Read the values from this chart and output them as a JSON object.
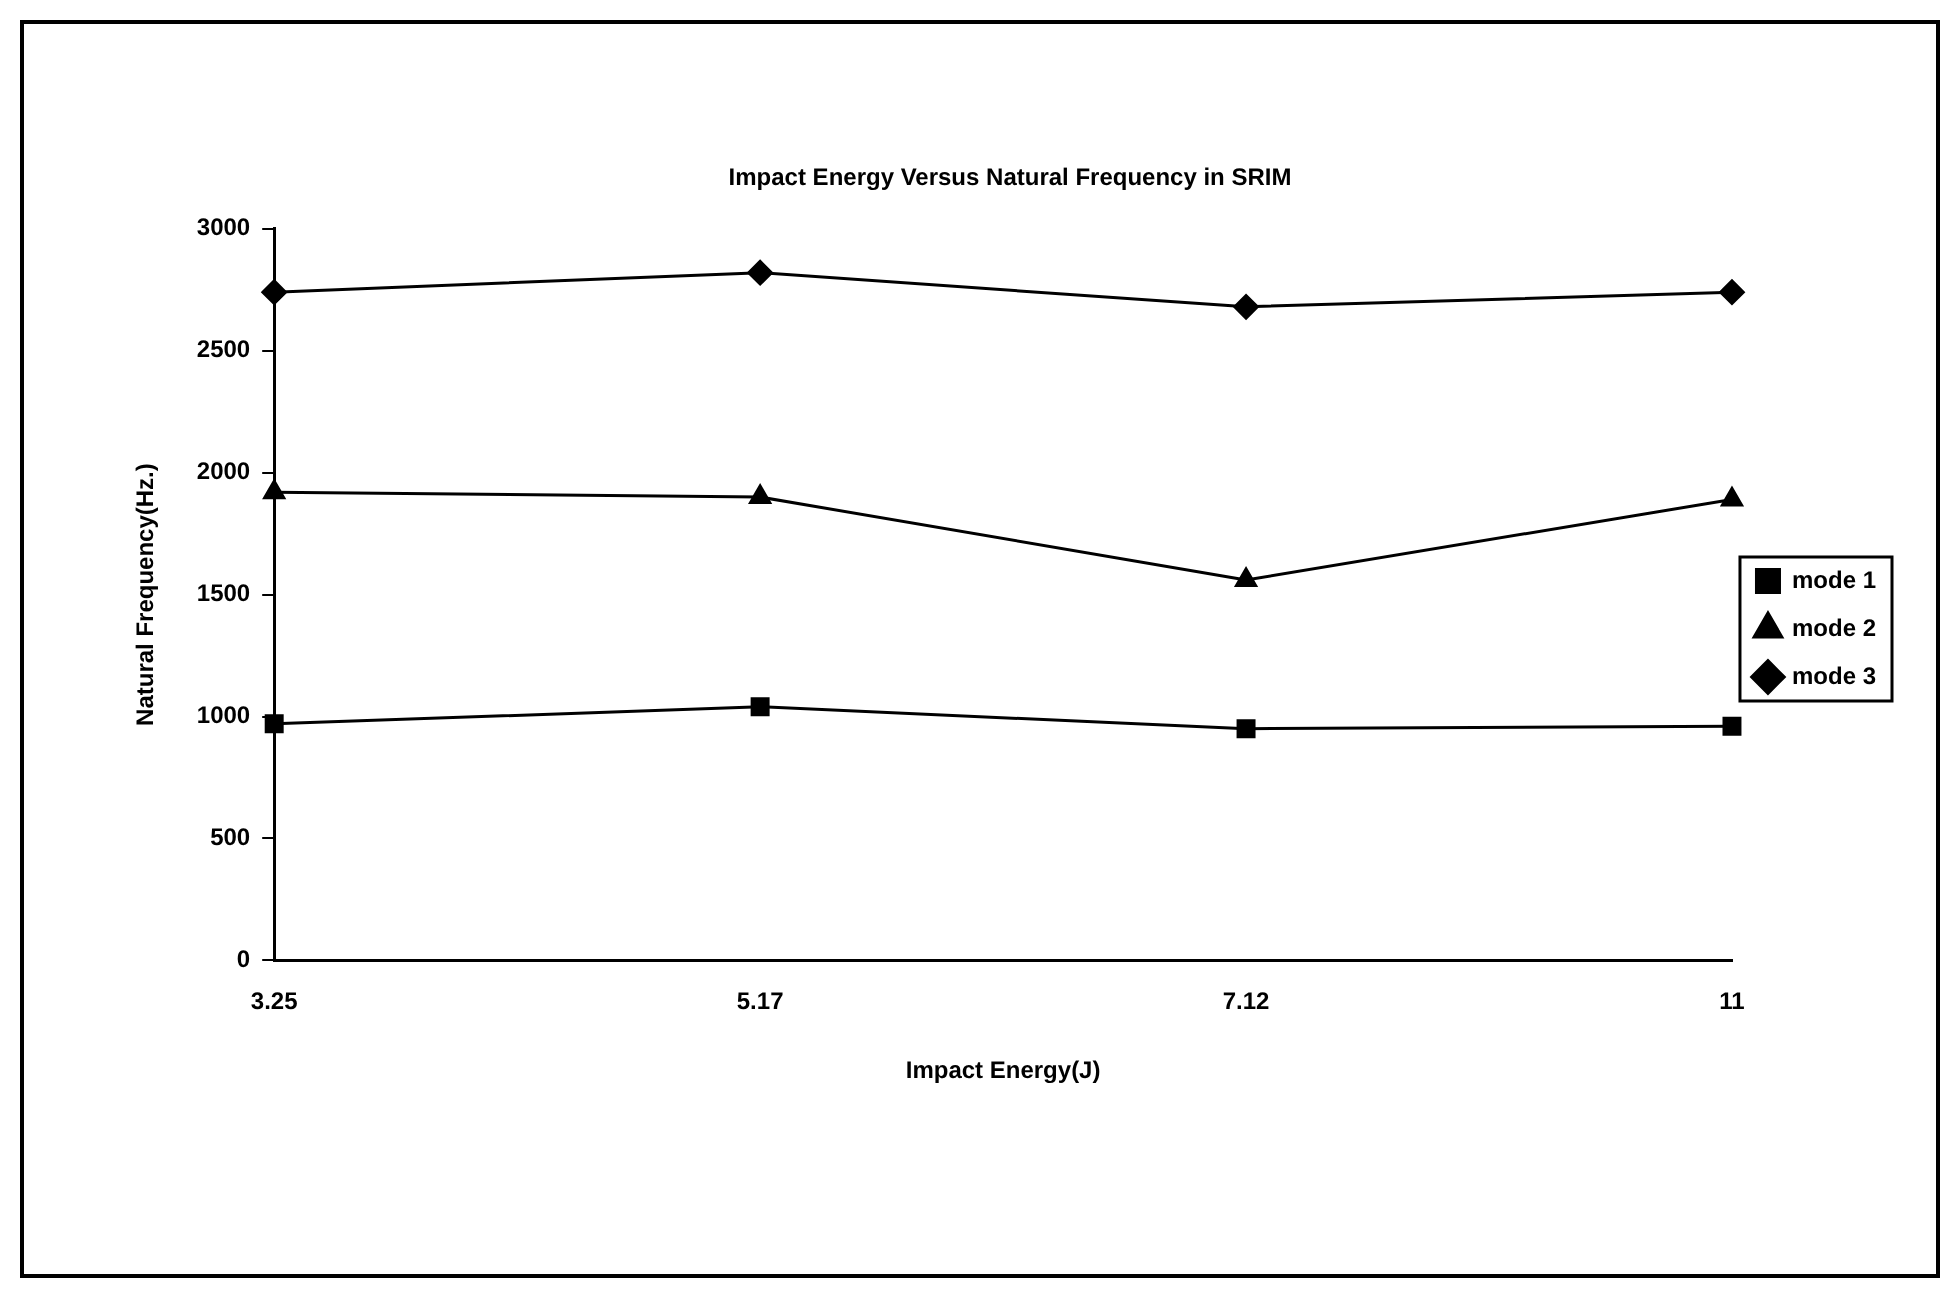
{
  "chart_data": {
    "type": "line",
    "title": "Impact Energy Versus Natural Frequency in SRIM",
    "xlabel": "Impact Energy(J)",
    "ylabel": "Natural Frequency(Hz.)",
    "categories": [
      "3.25",
      "5.17",
      "7.12",
      "11"
    ],
    "series": [
      {
        "name": "mode 1",
        "color": "#000000",
        "marker": "square",
        "values": [
          970,
          1040,
          950,
          960
        ]
      },
      {
        "name": "mode 2",
        "color": "#000000",
        "marker": "triangle",
        "values": [
          1920,
          1900,
          1560,
          1890
        ]
      },
      {
        "name": "mode 3",
        "color": "#000000",
        "marker": "diamond",
        "values": [
          2740,
          2820,
          2680,
          2740
        ]
      }
    ],
    "ylim": [
      0,
      3000
    ],
    "yticks": [
      0,
      500,
      1000,
      1500,
      2000,
      2500,
      3000
    ],
    "grid": false,
    "legend": "right",
    "line_style": "solid"
  }
}
